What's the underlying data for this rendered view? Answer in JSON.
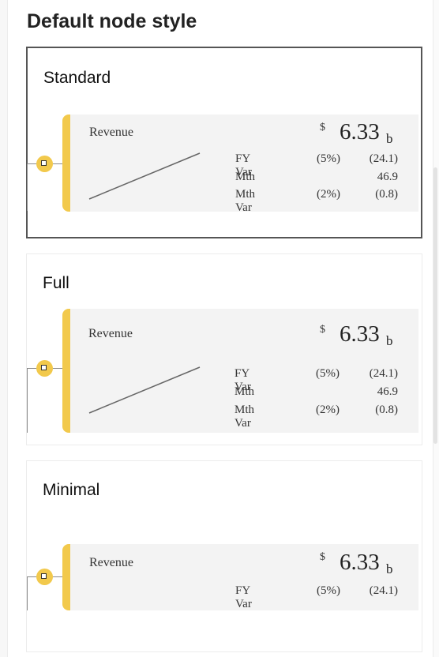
{
  "page_title": "Default node style",
  "styles": [
    {
      "name": "Standard",
      "node": {
        "label": "Revenue",
        "currency": "$",
        "value": "6.33",
        "unit": "b",
        "rows": [
          {
            "label": "FY Var",
            "pct": "(5%)",
            "val": "(24.1)"
          },
          {
            "label": "Mth",
            "pct": "",
            "val": "46.9"
          },
          {
            "label": "Mth Var",
            "pct": "(2%)",
            "val": "(0.8)"
          }
        ]
      }
    },
    {
      "name": "Full",
      "node": {
        "label": "Revenue",
        "currency": "$",
        "value": "6.33",
        "unit": "b",
        "rows": [
          {
            "label": "FY Var",
            "pct": "(5%)",
            "val": "(24.1)"
          },
          {
            "label": "Mth",
            "pct": "",
            "val": "46.9"
          },
          {
            "label": "Mth Var",
            "pct": "(2%)",
            "val": "(0.8)"
          }
        ]
      }
    },
    {
      "name": "Minimal",
      "node": {
        "label": "Revenue",
        "currency": "$",
        "value": "6.33",
        "unit": "b",
        "rows": [
          {
            "label": "FY Var",
            "pct": "(5%)",
            "val": "(24.1)"
          }
        ]
      }
    }
  ],
  "colors": {
    "accent": "#f2c94c",
    "node_bg": "#f3f3f3",
    "selected_border": "#555555"
  },
  "icons": {
    "toggle": "collapse-square-icon",
    "sparkline": "trend-line-icon"
  }
}
